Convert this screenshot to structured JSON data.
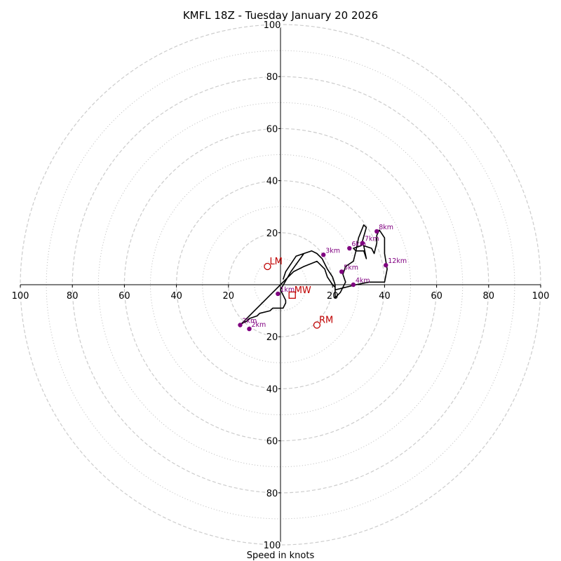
{
  "chart_data": {
    "type": "scatter",
    "subtype": "hodograph",
    "title": "KMFL 18Z - Tuesday January 20 2026",
    "xlabel": "Speed in knots",
    "units": "knots",
    "xlim": [
      -100,
      100
    ],
    "ylim": [
      -100,
      100
    ],
    "major_rings": [
      10,
      30,
      50,
      70,
      90
    ],
    "minor_rings": [
      20,
      40,
      60,
      80,
      100
    ],
    "tick_values": [
      20,
      40,
      60,
      80,
      100
    ],
    "x_tick_labels": [
      "100",
      "80",
      "60",
      "40",
      "20",
      "20",
      "40",
      "60",
      "80",
      "100"
    ],
    "y_tick_labels_top": [
      "20",
      "40",
      "60",
      "80",
      "100"
    ],
    "y_tick_labels_bottom": [
      "20",
      "40",
      "60",
      "80",
      "100"
    ],
    "series": [
      {
        "name": "hodograph",
        "color": "#000000",
        "u": [
          9,
          4,
          0,
          1,
          2,
          2,
          1,
          -3,
          -4,
          -8,
          -9,
          -12,
          -13,
          -15,
          -14,
          -10,
          -6,
          -2,
          0,
          2,
          5,
          9,
          14,
          17,
          18,
          20,
          21,
          21,
          21,
          23,
          24,
          25,
          24,
          25,
          28,
          29,
          30,
          32,
          33,
          31,
          28,
          29,
          32,
          33,
          32,
          35,
          36,
          37,
          37,
          38,
          40,
          40,
          41,
          40,
          34,
          29,
          25,
          21,
          21,
          20,
          18,
          16,
          14,
          12,
          9,
          6,
          2,
          1
        ],
        "v": [
          12,
          5,
          -2,
          -4,
          -6,
          -7,
          -9,
          -9,
          -10,
          -11,
          -12,
          -13,
          -14,
          -15,
          -14,
          -10,
          -6,
          -2,
          0,
          2,
          5,
          7,
          9,
          6,
          3,
          0,
          -1,
          -3,
          -5,
          -3,
          -1,
          1,
          4,
          7,
          9,
          13,
          18,
          23,
          22,
          15,
          14,
          13,
          13,
          10,
          15,
          14,
          12,
          16,
          19,
          21,
          18,
          12,
          6,
          1,
          1,
          0,
          -1,
          -2,
          0,
          3,
          6,
          10,
          12,
          13,
          12,
          11,
          5,
          2
        ]
      }
    ],
    "height_markers": [
      {
        "label": "1km",
        "u": -1,
        "v": -3.5
      },
      {
        "label": "2km",
        "u": -15.5,
        "v": -15.5
      },
      {
        "label": "2km",
        "u": -12,
        "v": -17
      },
      {
        "label": "3km",
        "u": 16.5,
        "v": 11.5
      },
      {
        "label": "4km",
        "u": 28,
        "v": 0
      },
      {
        "label": "5km",
        "u": 23.5,
        "v": 5
      },
      {
        "label": "6km",
        "u": 26.5,
        "v": 14
      },
      {
        "label": "7km",
        "u": 31.5,
        "v": 16
      },
      {
        "label": "8km",
        "u": 37,
        "v": 20.5
      },
      {
        "label": "12km",
        "u": 40.5,
        "v": 7.5
      }
    ],
    "motion_markers": [
      {
        "label": "LM",
        "u": -5,
        "v": 7,
        "symbol": "circle"
      },
      {
        "label": "MW",
        "u": 4.5,
        "v": -4,
        "symbol": "square"
      },
      {
        "label": "RM",
        "u": 14,
        "v": -15.5,
        "symbol": "circle"
      }
    ],
    "colors": {
      "axis": "#000000",
      "ring_major": "#bbbbbb",
      "ring_minor": "#cccccc",
      "trace": "#000000",
      "height_marker": "#800080",
      "motion_marker": "#c00000"
    }
  }
}
